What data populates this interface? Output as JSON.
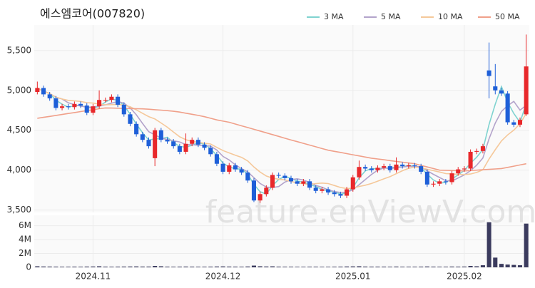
{
  "chart_data": {
    "type": "candlestick",
    "title": "에스엠코어(007820)",
    "watermark": "feature.enViewV.com",
    "categories": [
      null,
      null,
      null,
      null,
      null,
      null,
      null,
      null,
      null,
      "2024.11",
      null,
      null,
      null,
      null,
      null,
      null,
      null,
      null,
      null,
      null,
      null,
      null,
      null,
      null,
      null,
      null,
      null,
      null,
      null,
      null,
      "2024.12",
      null,
      null,
      null,
      null,
      null,
      null,
      null,
      null,
      null,
      null,
      null,
      null,
      null,
      null,
      null,
      null,
      null,
      null,
      null,
      null,
      "2025.01",
      null,
      null,
      null,
      null,
      null,
      null,
      null,
      null,
      null,
      null,
      null,
      null,
      null,
      null,
      null,
      null,
      null,
      "2025.02",
      null,
      null,
      null,
      null,
      null,
      null,
      null,
      null,
      null,
      null
    ],
    "open": [
      4980,
      5030,
      4950,
      4900,
      4780,
      4800,
      4790,
      4830,
      4810,
      4720,
      4800,
      4880,
      4880,
      4920,
      4820,
      4700,
      4580,
      4450,
      4380,
      4150,
      4500,
      4380,
      4360,
      4300,
      4230,
      4330,
      4380,
      4320,
      4280,
      4200,
      4080,
      3980,
      4060,
      4010,
      3970,
      3870,
      3620,
      3700,
      3780,
      3940,
      3930,
      3900,
      3860,
      3830,
      3860,
      3780,
      3740,
      3760,
      3720,
      3700,
      3680,
      3760,
      3910,
      4040,
      4020,
      4000,
      4030,
      4050,
      4000,
      4070,
      4050,
      4060,
      4050,
      3980,
      3820,
      3830,
      3860,
      3850,
      3960,
      4010,
      4020,
      4230,
      4240,
      5250,
      5050,
      5000,
      4960,
      4600,
      4570,
      4700
    ],
    "high": [
      5110,
      5060,
      4980,
      4930,
      4830,
      4830,
      4860,
      4860,
      4840,
      4830,
      5000,
      4910,
      4950,
      4950,
      4850,
      4730,
      4610,
      4480,
      4410,
      4530,
      4530,
      4410,
      4390,
      4330,
      4460,
      4410,
      4410,
      4350,
      4310,
      4230,
      4110,
      4090,
      4090,
      4040,
      4000,
      3900,
      3730,
      3810,
      3970,
      3970,
      3960,
      3930,
      3890,
      3890,
      3890,
      3810,
      3790,
      3790,
      3750,
      3730,
      3790,
      3940,
      4120,
      4070,
      4050,
      4060,
      4080,
      4080,
      4160,
      4100,
      4090,
      4090,
      4080,
      4010,
      3860,
      3890,
      3890,
      3990,
      4040,
      4050,
      4260,
      4270,
      4330,
      5600,
      5330,
      5030,
      4990,
      4630,
      4660,
      5700
    ],
    "low": [
      4950,
      4920,
      4870,
      4750,
      4750,
      4760,
      4760,
      4780,
      4690,
      4690,
      4770,
      4850,
      4850,
      4790,
      4670,
      4550,
      4420,
      4350,
      4270,
      4050,
      4350,
      4330,
      4270,
      4200,
      4200,
      4300,
      4290,
      4250,
      4170,
      4050,
      3950,
      3950,
      3980,
      3940,
      3840,
      3600,
      3590,
      3670,
      3750,
      3900,
      3870,
      3830,
      3800,
      3800,
      3750,
      3710,
      3710,
      3690,
      3670,
      3650,
      3650,
      3730,
      3880,
      3990,
      3970,
      3970,
      4000,
      3970,
      3970,
      4020,
      4020,
      4020,
      3950,
      3790,
      3790,
      3800,
      3820,
      3820,
      3930,
      3980,
      3990,
      4200,
      4210,
      4900,
      4950,
      4930,
      4570,
      4540,
      4540,
      4680
    ],
    "close": [
      5030,
      4950,
      4900,
      4780,
      4800,
      4790,
      4830,
      4810,
      4720,
      4800,
      4880,
      4880,
      4920,
      4820,
      4700,
      4580,
      4450,
      4380,
      4300,
      4500,
      4380,
      4360,
      4300,
      4230,
      4330,
      4380,
      4320,
      4280,
      4200,
      4080,
      3980,
      4060,
      4010,
      3970,
      3870,
      3620,
      3700,
      3780,
      3940,
      3930,
      3900,
      3860,
      3830,
      3860,
      3780,
      3740,
      3760,
      3720,
      3700,
      3680,
      3760,
      3910,
      4040,
      4020,
      4000,
      4030,
      4050,
      4000,
      4070,
      4050,
      4060,
      4050,
      3980,
      3820,
      3830,
      3860,
      3850,
      3960,
      4010,
      4020,
      4230,
      4240,
      4300,
      5180,
      5000,
      4960,
      4600,
      4570,
      4630,
      5300
    ],
    "up_color": "#e8282b",
    "down_color": "#1e5fd8",
    "ylim": [
      3470,
      5820
    ],
    "yticks": [
      {
        "value": 3500,
        "label": "3,500"
      },
      {
        "value": 4000,
        "label": "4,000"
      },
      {
        "value": 4500,
        "label": "4,500"
      },
      {
        "value": 5000,
        "label": "5,000"
      },
      {
        "value": 5500,
        "label": "5,500"
      }
    ],
    "grid": true,
    "legend": "top-right",
    "series": [
      {
        "name": "3 MA",
        "color": "#7fd3d0",
        "values": [
          5030,
          4990,
          4960,
          4877,
          4827,
          4790,
          4807,
          4810,
          4787,
          4777,
          4800,
          4853,
          4893,
          4873,
          4813,
          4700,
          4577,
          4470,
          4377,
          4393,
          4393,
          4413,
          4347,
          4297,
          4287,
          4313,
          4343,
          4327,
          4267,
          4187,
          4087,
          4040,
          4017,
          4013,
          3950,
          3820,
          3730,
          3700,
          3807,
          3883,
          3923,
          3897,
          3863,
          3850,
          3823,
          3793,
          3760,
          3740,
          3727,
          3700,
          3713,
          3783,
          3903,
          3990,
          4020,
          4017,
          4027,
          4027,
          4040,
          4040,
          4060,
          4053,
          4030,
          3950,
          3877,
          3837,
          3847,
          3890,
          3940,
          3997,
          4087,
          4163,
          4257,
          4573,
          4827,
          5047,
          4853,
          4710,
          4600,
          4833
        ]
      },
      {
        "name": "5 MA",
        "color": "#b3a3cb",
        "values": [
          5030,
          4990,
          4960,
          4915,
          4892,
          4844,
          4820,
          4802,
          4790,
          4790,
          4808,
          4818,
          4840,
          4860,
          4840,
          4780,
          4694,
          4586,
          4482,
          4442,
          4402,
          4384,
          4368,
          4354,
          4320,
          4320,
          4312,
          4308,
          4302,
          4252,
          4172,
          4128,
          4066,
          4020,
          3978,
          3906,
          3834,
          3788,
          3782,
          3794,
          3850,
          3882,
          3892,
          3876,
          3846,
          3808,
          3786,
          3752,
          3732,
          3720,
          3724,
          3754,
          3818,
          3882,
          3946,
          4000,
          4028,
          4020,
          4030,
          4040,
          4046,
          4046,
          4042,
          3992,
          3948,
          3908,
          3868,
          3864,
          3902,
          3940,
          3994,
          4062,
          4152,
          4394,
          4590,
          4736,
          4808,
          4862,
          4752,
          4812
        ]
      },
      {
        "name": "10 MA",
        "color": "#f5c89a",
        "values": [
          5030,
          4990,
          4960,
          4915,
          4892,
          4875,
          4869,
          4861,
          4846,
          4841,
          4826,
          4819,
          4821,
          4825,
          4815,
          4794,
          4756,
          4713,
          4671,
          4641,
          4591,
          4539,
          4477,
          4418,
          4381,
          4361,
          4348,
          4338,
          4328,
          4286,
          4246,
          4216,
          4187,
          4161,
          4115,
          4039,
          3977,
          3927,
          3901,
          3886,
          3878,
          3858,
          3840,
          3829,
          3820,
          3832,
          3838,
          3832,
          3808,
          3783,
          3769,
          3774,
          3795,
          3811,
          3833,
          3862,
          3891,
          3919,
          3956,
          3993,
          4023,
          4037,
          4031,
          4011,
          3994,
          3977,
          3957,
          3953,
          3947,
          3944,
          3952,
          3971,
          4003,
          4139,
          4256,
          4366,
          4441,
          4502,
          4582,
          4711
        ]
      },
      {
        "name": "50 MA",
        "color": "#f0a08a",
        "values": [
          4650,
          4662,
          4674,
          4686,
          4698,
          4710,
          4722,
          4734,
          4746,
          4758,
          4770,
          4780,
          4778,
          4776,
          4774,
          4772,
          4770,
          4768,
          4764,
          4758,
          4752,
          4746,
          4738,
          4728,
          4714,
          4700,
          4686,
          4670,
          4650,
          4630,
          4615,
          4600,
          4578,
          4556,
          4534,
          4512,
          4490,
          4468,
          4446,
          4423,
          4400,
          4378,
          4357,
          4336,
          4314,
          4293,
          4271,
          4250,
          4236,
          4222,
          4207,
          4193,
          4179,
          4164,
          4150,
          4140,
          4130,
          4120,
          4110,
          4100,
          4090,
          4080,
          4060,
          4040,
          4020,
          4000,
          3998,
          3995,
          3993,
          3990,
          3995,
          4000,
          4005,
          4010,
          4015,
          4020,
          4035,
          4050,
          4065,
          4080
        ]
      }
    ],
    "volume": {
      "color": "#3b3b5e",
      "ylim": [
        0,
        7500000
      ],
      "yticks": [
        0,
        {
          "value": 2000000,
          "label": "2M"
        },
        {
          "value": 4000000,
          "label": "4M"
        },
        {
          "value": 6000000,
          "label": "6M"
        }
      ],
      "values": [
        150000,
        120000,
        110000,
        100000,
        90000,
        90000,
        100000,
        90000,
        110000,
        120000,
        150000,
        100000,
        90000,
        100000,
        110000,
        120000,
        130000,
        110000,
        110000,
        200000,
        150000,
        100000,
        90000,
        100000,
        110000,
        100000,
        90000,
        90000,
        100000,
        120000,
        130000,
        110000,
        100000,
        90000,
        120000,
        250000,
        150000,
        120000,
        140000,
        100000,
        90000,
        90000,
        80000,
        80000,
        90000,
        90000,
        80000,
        80000,
        90000,
        100000,
        120000,
        130000,
        150000,
        110000,
        100000,
        100000,
        100000,
        90000,
        110000,
        90000,
        90000,
        90000,
        100000,
        120000,
        100000,
        90000,
        90000,
        110000,
        100000,
        110000,
        200000,
        150000,
        300000,
        6500000,
        1400000,
        500000,
        400000,
        350000,
        300000,
        6300000
      ]
    }
  }
}
